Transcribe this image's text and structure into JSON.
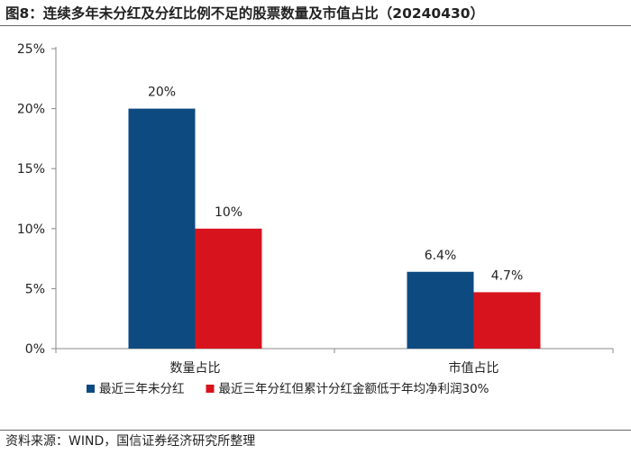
{
  "header": {
    "title": "图8：连续多年未分红及分红比例不足的股票数量及市值占比（20240430）"
  },
  "footer": {
    "source": "资料来源：WIND，国信证券经济研究所整理"
  },
  "chart_data": {
    "type": "bar",
    "title": "图8：连续多年未分红及分红比例不足的股票数量及市值占比（20240430）",
    "xlabel": "",
    "ylabel": "",
    "categories": [
      "数量占比",
      "市值占比"
    ],
    "ylim": [
      0,
      25
    ],
    "yticks": [
      0,
      5,
      10,
      15,
      20,
      25
    ],
    "yticks_labels": [
      "0%",
      "5%",
      "10%",
      "15%",
      "20%",
      "25%"
    ],
    "grid": false,
    "legend_position": "bottom",
    "series": [
      {
        "name": "最近三年未分红",
        "color": "#0d4a80",
        "values": [
          20,
          6.4
        ],
        "labels": [
          "20%",
          "6.4%"
        ]
      },
      {
        "name": "最近三年分红但累计分红金额低于年均净利润30%",
        "color": "#d7141e",
        "values": [
          10,
          4.7
        ],
        "labels": [
          "10%",
          "4.7%"
        ]
      }
    ]
  }
}
